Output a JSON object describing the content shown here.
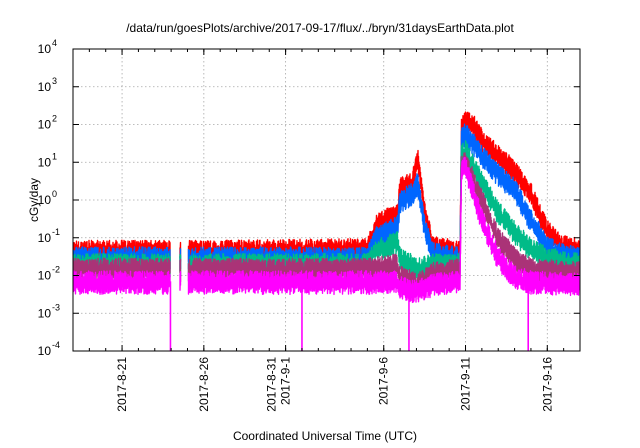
{
  "chart_data": {
    "type": "line",
    "title": "/data/run/goesPlots/archive/2017-09-17/flux/../bryn/31daysEarthData.plot",
    "xlabel": "Coordinated Universal Time (UTC)",
    "ylabel": "cGy/day",
    "y_scale": "log",
    "ylim": [
      "1e-4",
      "1e4"
    ],
    "y_ticks": [
      {
        "value": "1e-4",
        "base": "10",
        "exp": "-4"
      },
      {
        "value": "1e-3",
        "base": "10",
        "exp": "-3"
      },
      {
        "value": "1e-2",
        "base": "10",
        "exp": "-2"
      },
      {
        "value": "1e-1",
        "base": "10",
        "exp": "-1"
      },
      {
        "value": "1e0",
        "base": "10",
        "exp": "0"
      },
      {
        "value": "1e1",
        "base": "10",
        "exp": "1"
      },
      {
        "value": "1e2",
        "base": "10",
        "exp": "2"
      },
      {
        "value": "1e3",
        "base": "10",
        "exp": "3"
      },
      {
        "value": "1e4",
        "base": "10",
        "exp": "4"
      }
    ],
    "xlim": [
      "2017-08-18",
      "2017-09-18"
    ],
    "x_ticks": [
      {
        "date": "2017-08-21",
        "labels": [
          "2017-8-21"
        ]
      },
      {
        "date": "2017-08-26",
        "labels": [
          "2017-8-26"
        ]
      },
      {
        "date": "2017-08-31",
        "labels": [
          "2017-8-31",
          "2017-9-1"
        ]
      },
      {
        "date": "2017-09-06",
        "labels": [
          "2017-9-6"
        ]
      },
      {
        "date": "2017-09-11",
        "labels": [
          "2017-9-11"
        ]
      },
      {
        "date": "2017-09-16",
        "labels": [
          "2017-9-16"
        ]
      }
    ],
    "grid": true,
    "data_gaps": [
      [
        "2017-08-23T23:00",
        "2017-08-24T13:00"
      ],
      [
        "2017-08-24T14:00",
        "2017-08-25T01:00"
      ]
    ],
    "series": [
      {
        "color": "#ff0000",
        "points": [
          [
            "2017-08-18",
            0.045
          ],
          [
            "2017-08-23T23:00",
            0.045
          ],
          [
            "2017-08-25T01:00",
            0.045
          ],
          [
            "2017-09-05",
            0.05
          ],
          [
            "2017-09-05T12:00",
            0.2
          ],
          [
            "2017-09-06",
            0.3
          ],
          [
            "2017-09-06T20:00",
            0.4
          ],
          [
            "2017-09-07",
            2.0
          ],
          [
            "2017-09-07T18:00",
            3.0
          ],
          [
            "2017-09-08T02:00",
            12.0
          ],
          [
            "2017-09-08T06:00",
            4.0
          ],
          [
            "2017-09-08T12:00",
            0.5
          ],
          [
            "2017-09-09",
            0.06
          ],
          [
            "2017-09-10T16:00",
            0.045
          ],
          [
            "2017-09-10T18:00",
            90.0
          ],
          [
            "2017-09-11",
            130.0
          ],
          [
            "2017-09-11T12:00",
            100.0
          ],
          [
            "2017-09-12",
            40.0
          ],
          [
            "2017-09-13",
            15.0
          ],
          [
            "2017-09-14",
            6.0
          ],
          [
            "2017-09-15",
            1.5
          ],
          [
            "2017-09-16",
            0.15
          ],
          [
            "2017-09-17",
            0.06
          ],
          [
            "2017-09-18",
            0.05
          ]
        ]
      },
      {
        "color": "#0066ff",
        "points": [
          [
            "2017-08-18",
            0.03
          ],
          [
            "2017-08-23T23:00",
            0.03
          ],
          [
            "2017-08-25T01:00",
            0.03
          ],
          [
            "2017-09-05",
            0.03
          ],
          [
            "2017-09-05T12:00",
            0.1
          ],
          [
            "2017-09-06T20:00",
            0.2
          ],
          [
            "2017-09-07",
            1.0
          ],
          [
            "2017-09-07T18:00",
            1.5
          ],
          [
            "2017-09-08T02:00",
            3.0
          ],
          [
            "2017-09-08T12:00",
            0.2
          ],
          [
            "2017-09-09",
            0.04
          ],
          [
            "2017-09-10T16:00",
            0.03
          ],
          [
            "2017-09-10T18:00",
            40.0
          ],
          [
            "2017-09-11",
            60.0
          ],
          [
            "2017-09-12",
            15.0
          ],
          [
            "2017-09-13",
            5.0
          ],
          [
            "2017-09-14",
            2.0
          ],
          [
            "2017-09-15",
            0.3
          ],
          [
            "2017-09-16",
            0.06
          ],
          [
            "2017-09-17",
            0.035
          ],
          [
            "2017-09-18",
            0.03
          ]
        ]
      },
      {
        "color": "#00bb88",
        "points": [
          [
            "2017-08-18",
            0.02
          ],
          [
            "2017-08-23T23:00",
            0.02
          ],
          [
            "2017-08-25T01:00",
            0.02
          ],
          [
            "2017-09-05",
            0.02
          ],
          [
            "2017-09-05T12:00",
            0.05
          ],
          [
            "2017-09-06T20:00",
            0.08
          ],
          [
            "2017-09-07",
            0.03
          ],
          [
            "2017-09-07T18:00",
            0.02
          ],
          [
            "2017-09-08T02:00",
            0.015
          ],
          [
            "2017-09-09",
            0.02
          ],
          [
            "2017-09-10T16:00",
            0.02
          ],
          [
            "2017-09-10T18:00",
            15.0
          ],
          [
            "2017-09-11",
            20.0
          ],
          [
            "2017-09-12",
            3.0
          ],
          [
            "2017-09-13",
            0.5
          ],
          [
            "2017-09-14",
            0.15
          ],
          [
            "2017-09-15",
            0.05
          ],
          [
            "2017-09-16",
            0.03
          ],
          [
            "2017-09-18",
            0.02
          ]
        ]
      },
      {
        "color": "#aa3377",
        "points": [
          [
            "2017-08-18",
            0.015
          ],
          [
            "2017-08-23T23:00",
            0.015
          ],
          [
            "2017-08-25T01:00",
            0.015
          ],
          [
            "2017-09-05",
            0.015
          ],
          [
            "2017-09-06T20:00",
            0.02
          ],
          [
            "2017-09-07",
            0.01
          ],
          [
            "2017-09-08T02:00",
            0.006
          ],
          [
            "2017-09-09",
            0.012
          ],
          [
            "2017-09-10T16:00",
            0.015
          ],
          [
            "2017-09-10T18:00",
            8.0
          ],
          [
            "2017-09-11",
            10.0
          ],
          [
            "2017-09-12",
            1.0
          ],
          [
            "2017-09-13",
            0.1
          ],
          [
            "2017-09-14",
            0.03
          ],
          [
            "2017-09-15",
            0.015
          ],
          [
            "2017-09-18",
            0.012
          ]
        ]
      },
      {
        "color": "#ff00ff",
        "points": [
          [
            "2017-08-18",
            0.007
          ],
          [
            "2017-08-23T23:00",
            0.007
          ],
          [
            "2017-08-25T01:00",
            0.007
          ],
          [
            "2017-09-05",
            0.007
          ],
          [
            "2017-09-06T20:00",
            0.007
          ],
          [
            "2017-09-07",
            0.005
          ],
          [
            "2017-09-08T02:00",
            0.004
          ],
          [
            "2017-09-09",
            0.006
          ],
          [
            "2017-09-10T16:00",
            0.007
          ],
          [
            "2017-09-10T18:00",
            6.0
          ],
          [
            "2017-09-11",
            8.0
          ],
          [
            "2017-09-12",
            0.3
          ],
          [
            "2017-09-13",
            0.03
          ],
          [
            "2017-09-14",
            0.01
          ],
          [
            "2017-09-15",
            0.007
          ],
          [
            "2017-09-18",
            0.006
          ]
        ]
      }
    ],
    "dropouts": [
      {
        "color": "#ff00ff",
        "date": "2017-08-23T23:00",
        "to": "1e-4"
      },
      {
        "color": "#ff00ff",
        "date": "2017-09-01T00:00",
        "to": "1e-4"
      },
      {
        "color": "#ff00ff",
        "date": "2017-09-07T13:00",
        "to": "1e-4"
      },
      {
        "color": "#ff00ff",
        "date": "2017-09-14T20:00",
        "to": "1e-4"
      }
    ]
  }
}
